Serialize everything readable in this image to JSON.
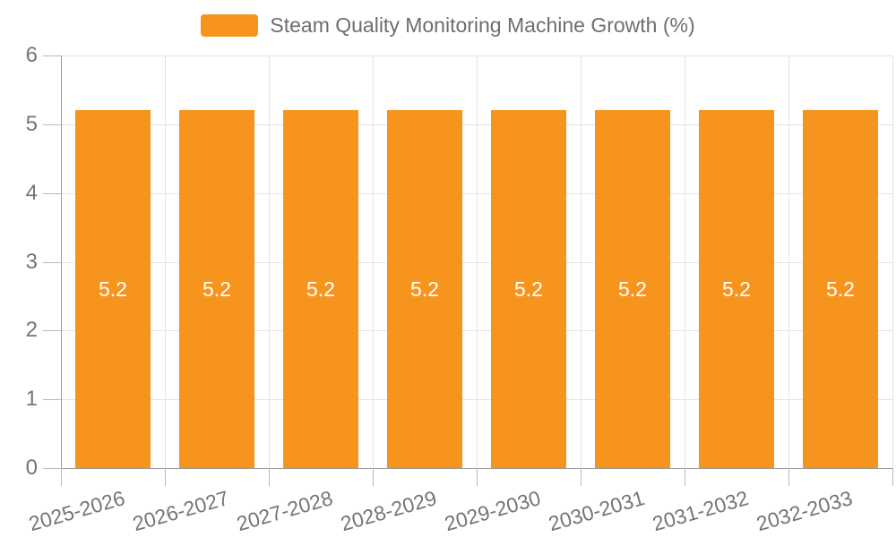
{
  "chart_data": {
    "type": "bar",
    "title": "Steam Quality Monitoring Machine Growth (%)",
    "categories": [
      "2025-2026",
      "2026-2027",
      "2027-2028",
      "2028-2029",
      "2029-2030",
      "2030-2031",
      "2031-2032",
      "2032-2033"
    ],
    "values": [
      5.2,
      5.2,
      5.2,
      5.2,
      5.2,
      5.2,
      5.2,
      5.2
    ],
    "value_labels": [
      "5.2",
      "5.2",
      "5.2",
      "5.2",
      "5.2",
      "5.2",
      "5.2",
      "5.2"
    ],
    "xlabel": "",
    "ylabel": "",
    "ylim": [
      0,
      6
    ],
    "yticks": [
      0,
      1,
      2,
      3,
      4,
      5,
      6
    ],
    "grid": true,
    "legend_position": "top-center",
    "label_rotation_deg": -16,
    "colors": {
      "bar": "#F7941E",
      "bar_value_text": "#FFFFFF",
      "axis_line": "#999999",
      "tick_mark": "#B9B9B9",
      "grid_line": "#E3E3E3",
      "tick_text": "#757575",
      "legend_text": "#6E6E6E",
      "background": "#FFFFFF"
    }
  }
}
